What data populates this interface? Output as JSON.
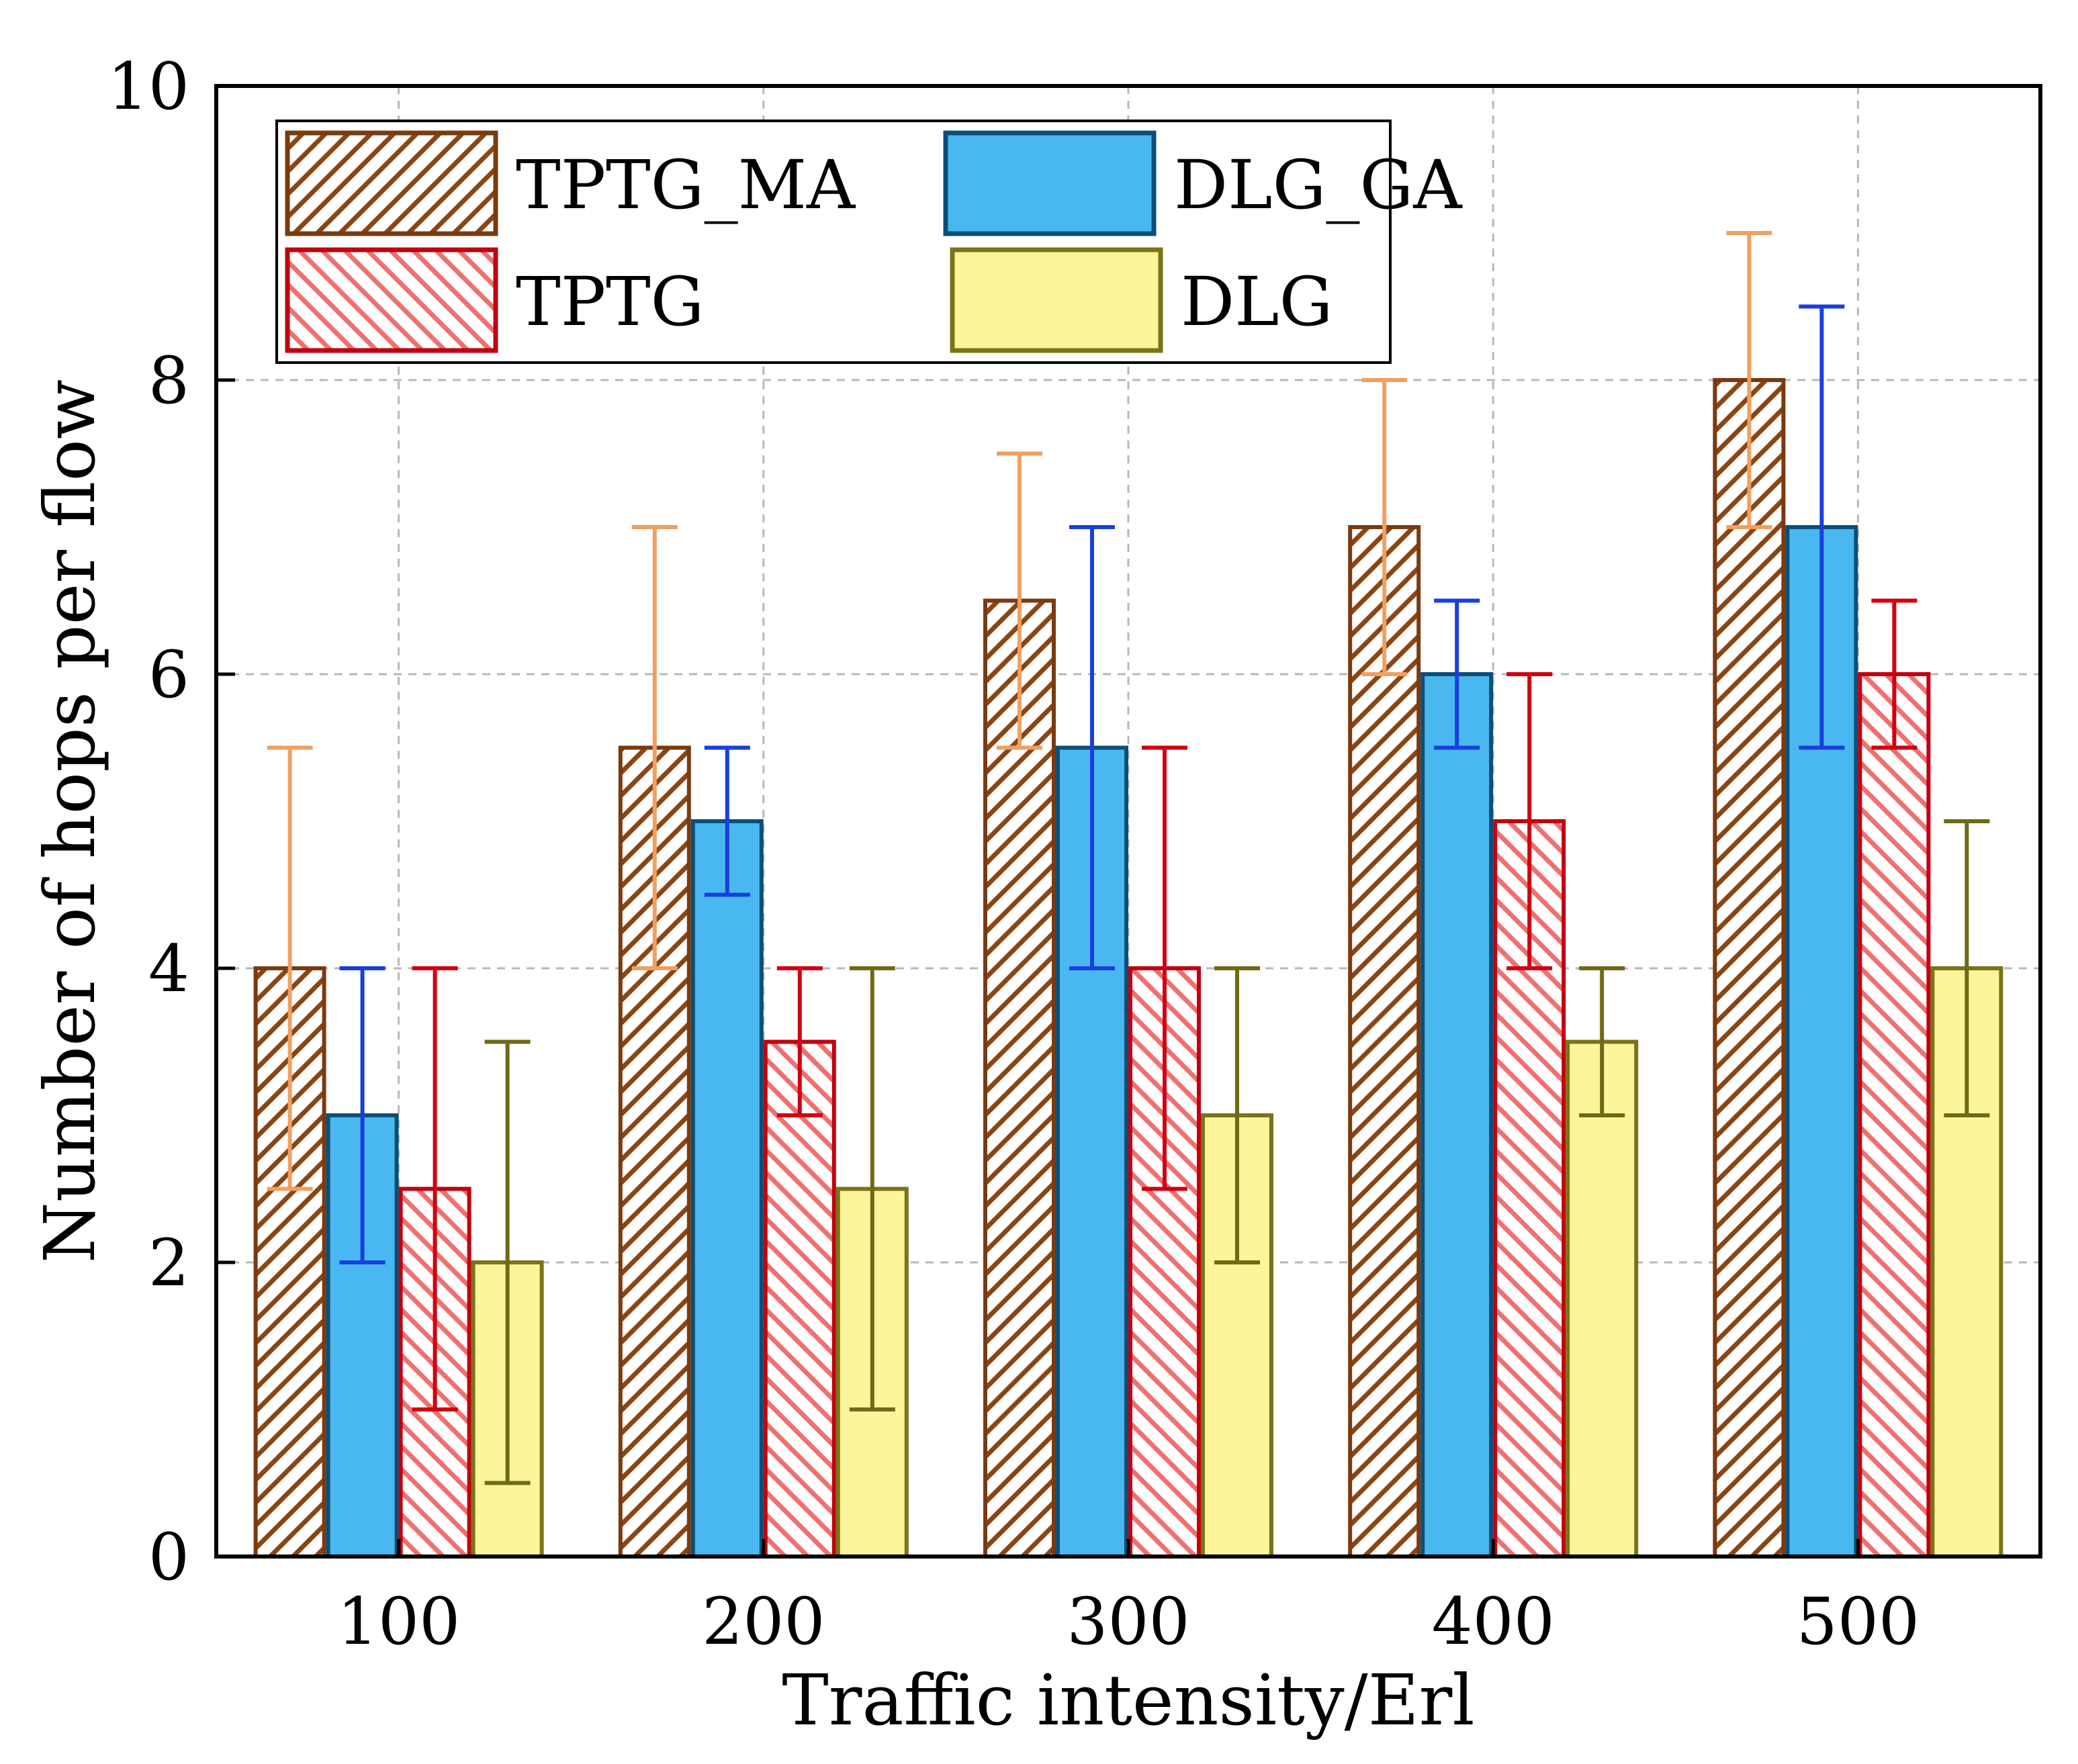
{
  "chart_data": {
    "type": "bar",
    "title": "",
    "xlabel": "Traffic intensity/Erl",
    "ylabel": "Number of hops per flow",
    "ylim": [
      0,
      10
    ],
    "yticks": [
      "0",
      "2",
      "4",
      "6",
      "8",
      "10"
    ],
    "grid": true,
    "legend_position": "top-left",
    "categories": [
      "100",
      "200",
      "300",
      "400",
      "500"
    ],
    "series": [
      {
        "name": "TPTG_MA",
        "values": [
          4,
          5.5,
          6.5,
          7,
          8
        ],
        "err_low": [
          2.5,
          4,
          5.5,
          6,
          7
        ],
        "err_high": [
          5.5,
          7,
          7.5,
          8,
          9
        ],
        "fill": "#ffffff",
        "stroke": "#7a3a10",
        "hatch": "#8b4513",
        "error_color": "#f0a060",
        "pattern": "hatch-fwd"
      },
      {
        "name": "DLG_GA",
        "values": [
          3,
          5,
          5.5,
          6,
          7
        ],
        "err_low": [
          2,
          4.5,
          4,
          5.5,
          5.5
        ],
        "err_high": [
          4,
          5.5,
          7,
          6.5,
          8.5
        ],
        "fill": "#4ab8f0",
        "stroke": "#0a4f78",
        "hatch": "#4ab8f0",
        "error_color": "#1a3ee0",
        "pattern": "solid"
      },
      {
        "name": "TPTG",
        "values": [
          2.5,
          3.5,
          4,
          5,
          6
        ],
        "err_low": [
          1,
          3,
          2.5,
          4,
          5.5
        ],
        "err_high": [
          4,
          4,
          5.5,
          6,
          6.5
        ],
        "fill": "#ffffff",
        "stroke": "#c00010",
        "hatch": "#f07070",
        "error_color": "#d00010",
        "pattern": "hatch-back"
      },
      {
        "name": "DLG",
        "values": [
          2,
          2.5,
          3,
          3.5,
          4
        ],
        "err_low": [
          0.5,
          1,
          2,
          3,
          3
        ],
        "err_high": [
          3.5,
          4,
          4,
          4,
          5
        ],
        "fill": "#fcf59a",
        "stroke": "#7a7418",
        "hatch": "#fcf59a",
        "error_color": "#6e6a16",
        "pattern": "solid"
      }
    ]
  }
}
